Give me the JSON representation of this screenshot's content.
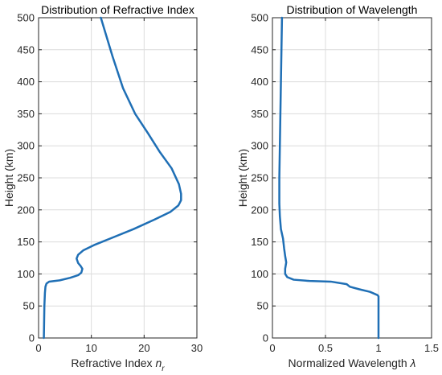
{
  "chart_data": [
    {
      "type": "line",
      "title": "Distribution of Refractive Index",
      "xlabel": "Refractive Index",
      "xlabel_symbol": "n",
      "xlabel_subscript": "r",
      "ylabel": "Height (km)",
      "xlim": [
        0,
        30
      ],
      "ylim": [
        0,
        500
      ],
      "xticks": [
        0,
        10,
        20,
        30
      ],
      "yticks": [
        0,
        50,
        100,
        150,
        200,
        250,
        300,
        350,
        400,
        450,
        500
      ],
      "grid": true,
      "series_color": "#1f6fb5",
      "series": [
        {
          "x": [
            1.0,
            1.1,
            1.2,
            1.3,
            1.5,
            2.0,
            4.0,
            6.0,
            7.5,
            8.1,
            8.3,
            8.0,
            7.5,
            7.2,
            7.5,
            8.5,
            10.5,
            13.5,
            18.0,
            22.0,
            25.0,
            26.5,
            27.0,
            27.0,
            26.6,
            25.2,
            23.0,
            20.7,
            18.3,
            16.0,
            14.0,
            11.8
          ],
          "y": [
            0,
            50,
            70,
            80,
            85,
            88,
            90,
            94,
            98,
            102,
            108,
            112,
            117,
            124,
            130,
            137,
            145,
            155,
            170,
            185,
            197,
            207,
            215,
            225,
            240,
            265,
            290,
            320,
            350,
            390,
            440,
            500
          ]
        }
      ]
    },
    {
      "type": "line",
      "title": "Distribution of Wavelength",
      "xlabel": "Normalized Wavelength",
      "xlabel_symbol": "λ",
      "ylabel": "Height (km)",
      "xlim": [
        0,
        1.5
      ],
      "ylim": [
        0,
        500
      ],
      "xticks": [
        0,
        0.5,
        1,
        1.5
      ],
      "yticks": [
        0,
        50,
        100,
        150,
        200,
        250,
        300,
        350,
        400,
        450,
        500
      ],
      "grid": true,
      "series_color": "#1f6fb5",
      "series": [
        {
          "x": [
            1.0,
            1.0,
            0.99,
            0.92,
            0.82,
            0.73,
            0.7,
            0.55,
            0.35,
            0.2,
            0.14,
            0.12,
            0.12,
            0.13,
            0.12,
            0.11,
            0.1,
            0.08,
            0.07,
            0.065,
            0.065,
            0.07,
            0.075,
            0.08,
            0.085,
            0.09
          ],
          "y": [
            0,
            65,
            67,
            72,
            76,
            80,
            84,
            88,
            89,
            91,
            95,
            100,
            108,
            118,
            128,
            140,
            155,
            170,
            190,
            210,
            250,
            300,
            350,
            400,
            450,
            500
          ]
        }
      ]
    }
  ]
}
